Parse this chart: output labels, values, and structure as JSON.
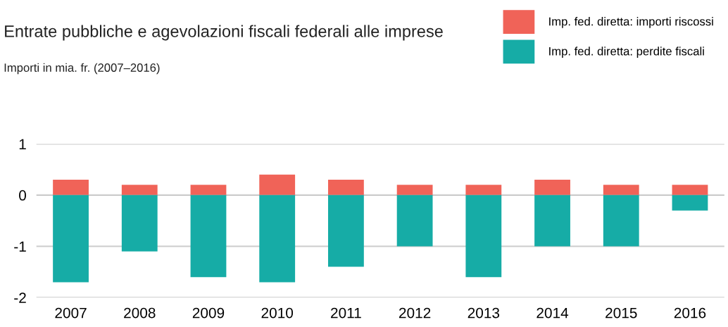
{
  "chart_data": {
    "type": "bar",
    "title": "Entrate pubbliche e agevolazioni fiscali federali alle imprese",
    "subtitle": "Importi in mia. fr. (2007–2016)",
    "categories": [
      "2007",
      "2008",
      "2009",
      "2010",
      "2011",
      "2012",
      "2013",
      "2014",
      "2015",
      "2016"
    ],
    "series": [
      {
        "name": "Imp. fed. diretta: importi riscossi",
        "color": "#f06358",
        "values": [
          0.3,
          0.2,
          0.2,
          0.4,
          0.3,
          0.2,
          0.2,
          0.3,
          0.2,
          0.2
        ]
      },
      {
        "name": "Imp. fed. diretta: perdite fiscali",
        "color": "#16aca6",
        "values": [
          -1.7,
          -1.1,
          -1.6,
          -1.7,
          -1.4,
          -1.0,
          -1.6,
          -1.0,
          -1.0,
          -0.3
        ]
      }
    ],
    "stacked": true,
    "ylim": [
      -2,
      1
    ],
    "yticks": [
      {
        "value": -2,
        "label": "-2"
      },
      {
        "value": -1,
        "label": "-1"
      },
      0,
      1
    ],
    "grid": "y",
    "legend": "top right"
  }
}
